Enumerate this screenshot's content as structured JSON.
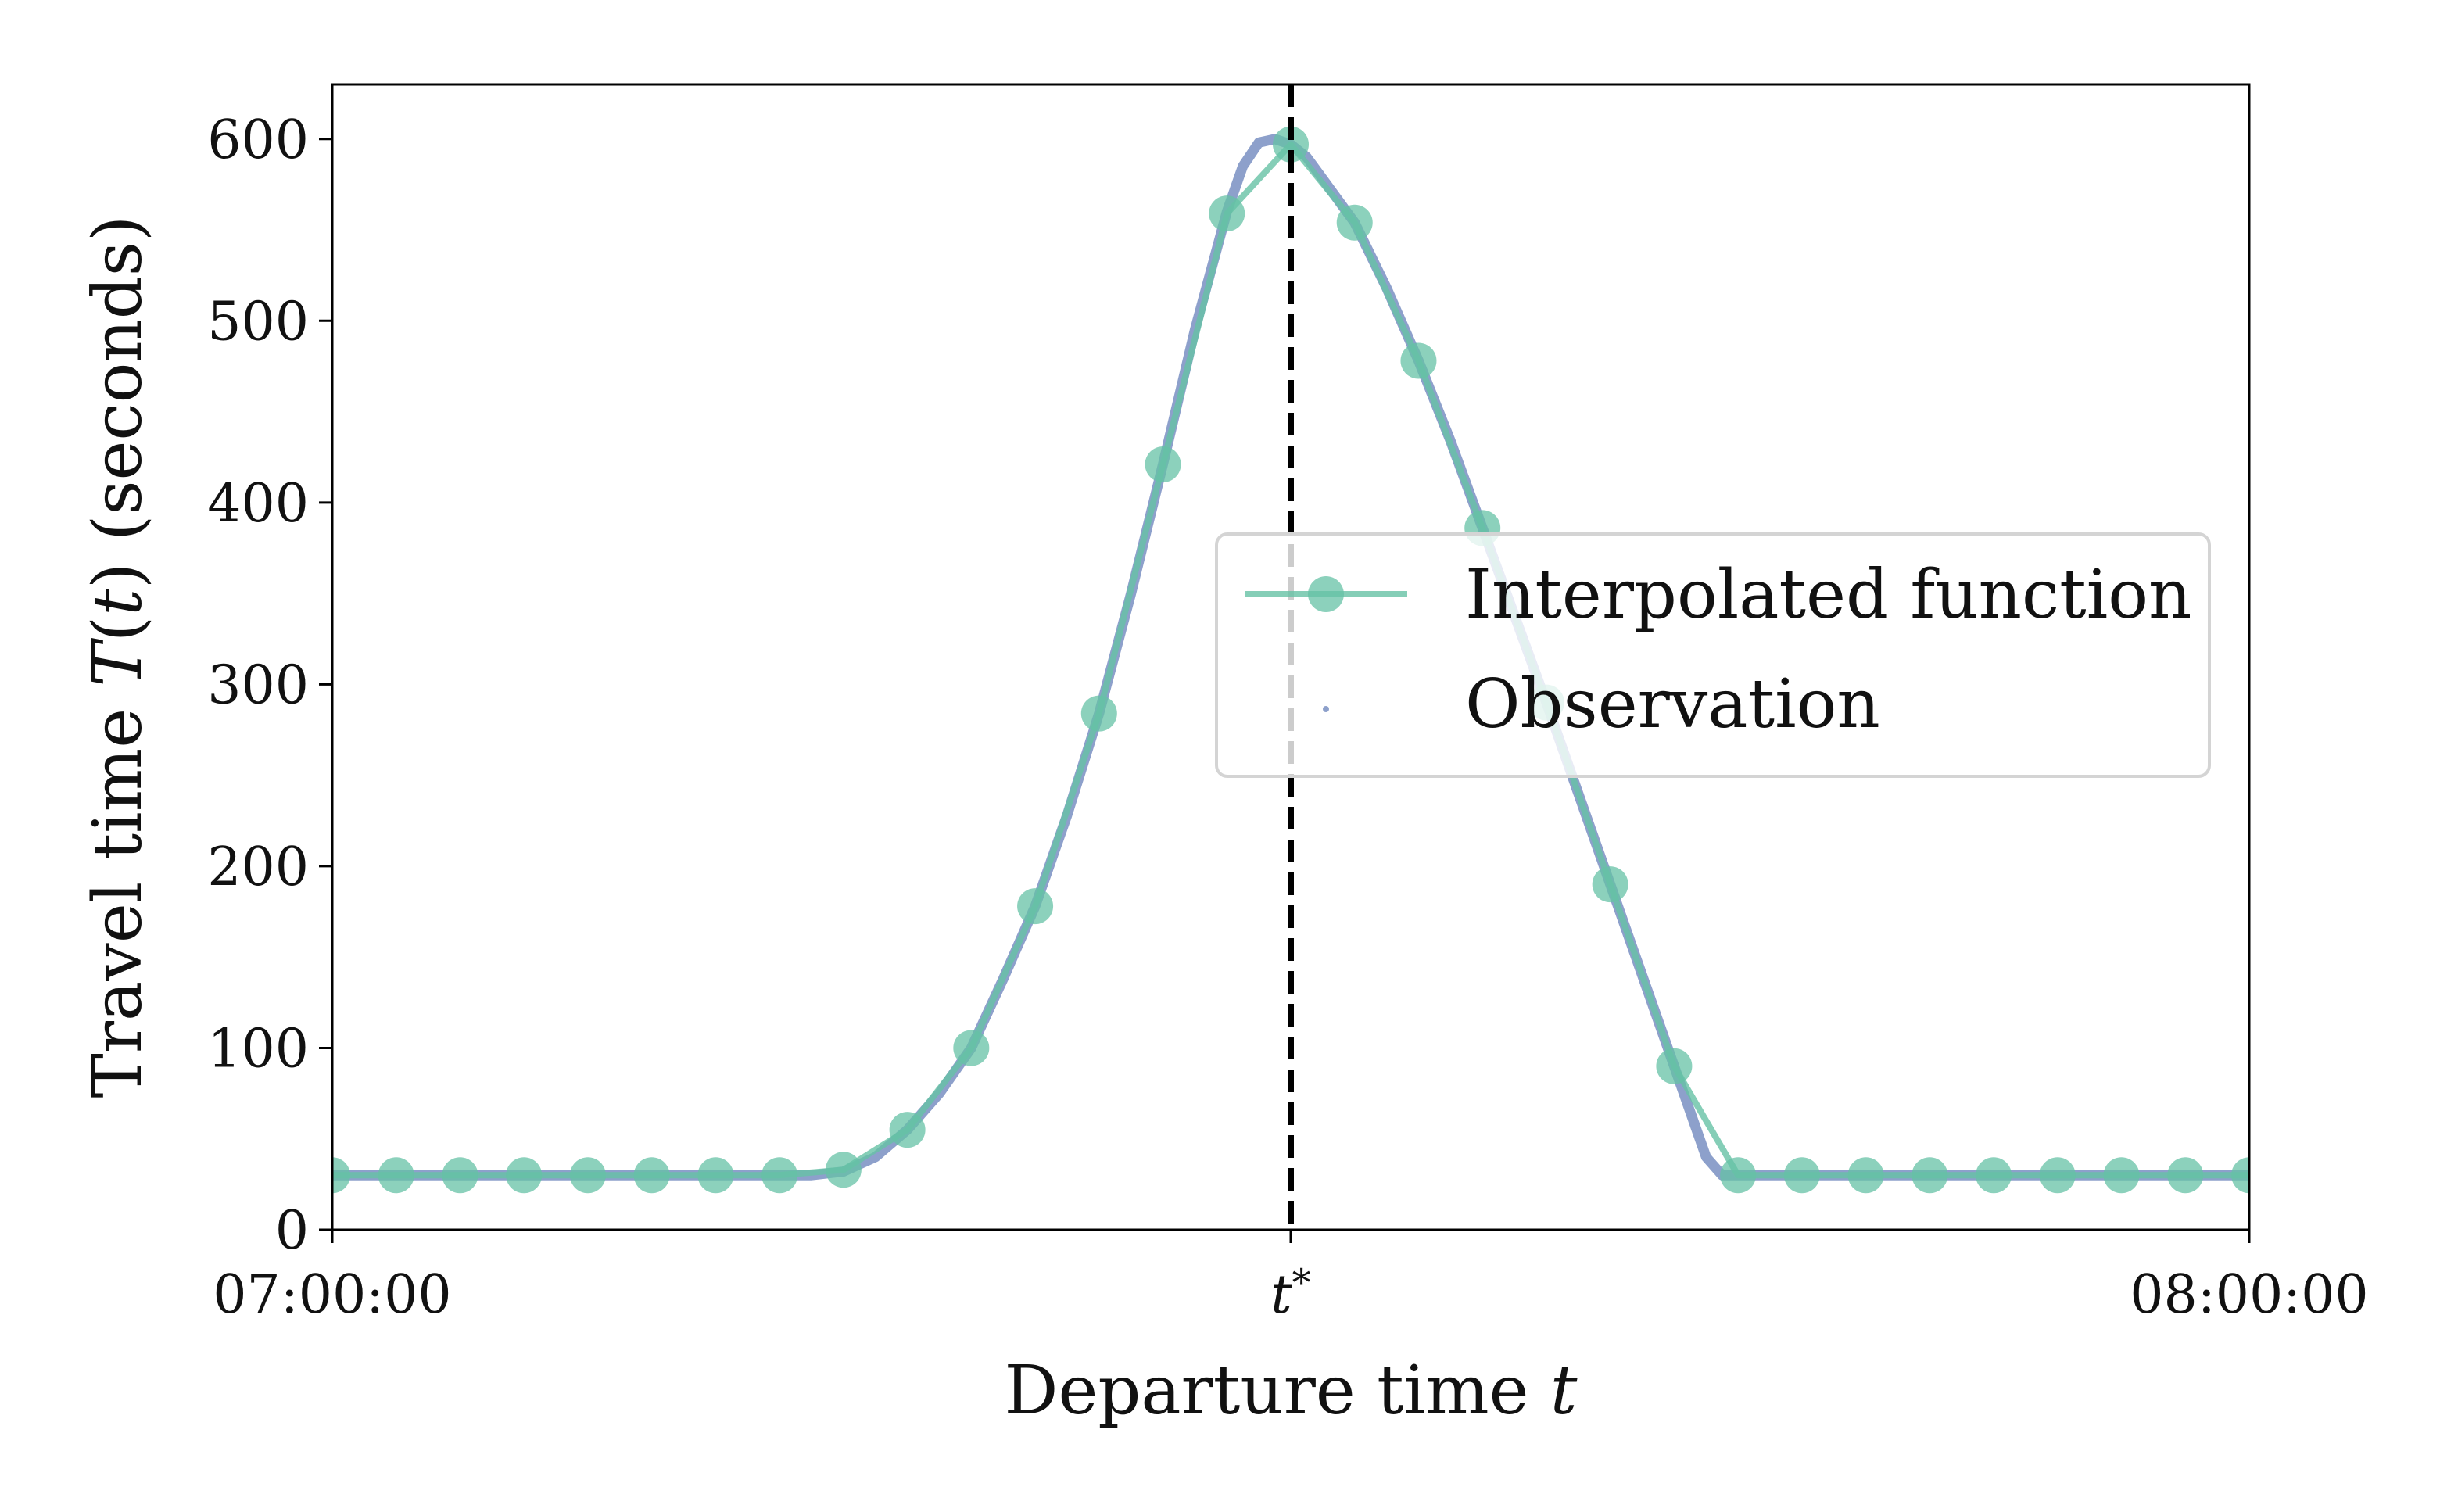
{
  "chart_data": {
    "type": "line",
    "xlabel": "Departure time",
    "xlabel_var": "t",
    "ylabel_prefix": "Travel time",
    "ylabel_fn": "T",
    "ylabel_arg": "t",
    "ylabel_suffix": "(seconds)",
    "xlim": [
      0,
      3600
    ],
    "ylim": [
      0,
      630
    ],
    "x_ticks": [
      {
        "x": 0,
        "label": "07:00:00"
      },
      {
        "x": 1800,
        "label": "t*"
      },
      {
        "x": 3600,
        "label": "08:00:00"
      }
    ],
    "y_ticks": [
      0,
      100,
      200,
      300,
      400,
      500,
      600
    ],
    "vline": {
      "x": 1800,
      "style": "dashed",
      "color": "#000000"
    },
    "legend_position": "center-right",
    "series": [
      {
        "name": "Interpolated function",
        "color": "#66c2a5",
        "marker": "circle",
        "x": [
          0,
          120,
          240,
          360,
          480,
          600,
          720,
          840,
          960,
          1080,
          1200,
          1320,
          1440,
          1560,
          1680,
          1800,
          1920,
          2040,
          2160,
          2280,
          2400,
          2520,
          2640,
          2760,
          2880,
          3000,
          3120,
          3240,
          3360,
          3480,
          3600
        ],
        "values": [
          30,
          30,
          30,
          30,
          30,
          30,
          30,
          30,
          33,
          55,
          100,
          178,
          284,
          421,
          559,
          597,
          554,
          478,
          386,
          290,
          190,
          90,
          30,
          30,
          30,
          30,
          30,
          30,
          30,
          30,
          30
        ]
      },
      {
        "name": "Observation",
        "color": "#8da0cb",
        "marker": "point",
        "x": [
          0,
          900,
          960,
          1020,
          1080,
          1140,
          1200,
          1260,
          1320,
          1380,
          1440,
          1500,
          1560,
          1620,
          1680,
          1710,
          1740,
          1770,
          1800,
          1830,
          1860,
          1920,
          1980,
          2040,
          2100,
          2160,
          2220,
          2280,
          2340,
          2400,
          2460,
          2520,
          2580,
          2610,
          2640,
          3600
        ],
        "values": [
          30,
          30,
          32,
          40,
          55,
          75,
          100,
          138,
          178,
          228,
          284,
          350,
          421,
          495,
          560,
          585,
          598,
          600,
          597,
          590,
          578,
          554,
          518,
          478,
          434,
          386,
          338,
          290,
          240,
          190,
          140,
          90,
          40,
          30,
          30,
          30
        ]
      }
    ]
  }
}
